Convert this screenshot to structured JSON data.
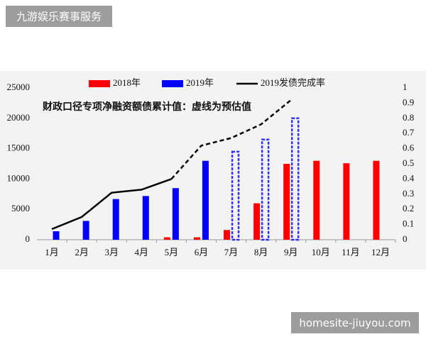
{
  "overlay": {
    "label": "九游娱乐赛事服务",
    "site": "homesite-jiuyou.com"
  },
  "chart_data": {
    "type": "bar",
    "annotation": "财政口径专项净融资额债累计值：虚线为预估值",
    "categories": [
      "1月",
      "2月",
      "3月",
      "4月",
      "5月",
      "6月",
      "7月",
      "8月",
      "9月",
      "10月",
      "11月",
      "12月"
    ],
    "series": [
      {
        "name": "2018年",
        "color": "#ff0000",
        "type": "bar",
        "values": [
          null,
          null,
          null,
          null,
          400,
          400,
          1600,
          6000,
          12500,
          13000,
          12600,
          13000
        ]
      },
      {
        "name": "2019年",
        "color": "#0000ff",
        "type": "bar",
        "values": [
          1400,
          3100,
          6700,
          7200,
          8500,
          13000,
          14500,
          16500,
          20000,
          null,
          null,
          null
        ],
        "styles": [
          "solid",
          "solid",
          "solid",
          "solid",
          "solid",
          "solid",
          "dashed",
          "dashed",
          "dashed",
          null,
          null,
          null
        ]
      },
      {
        "name": "2019发债完成率",
        "color": "#000000",
        "type": "line",
        "axis": "y2",
        "values": [
          0.07,
          0.15,
          0.31,
          0.33,
          0.4,
          0.62,
          0.67,
          0.76,
          0.92,
          null,
          null,
          null
        ],
        "styles": [
          "solid",
          "solid",
          "solid",
          "solid",
          "solid",
          "dashed",
          "dashed",
          "dashed",
          "dashed",
          null,
          null,
          null
        ]
      }
    ],
    "ylim": [
      0,
      25000
    ],
    "yticks": [
      0,
      5000,
      10000,
      15000,
      20000,
      25000
    ],
    "y2lim": [
      0,
      1
    ],
    "y2ticks": [
      0,
      0.1,
      0.2,
      0.3,
      0.4,
      0.5,
      0.6,
      0.7,
      0.8,
      0.9,
      1
    ],
    "grid": false,
    "legend": "top"
  }
}
